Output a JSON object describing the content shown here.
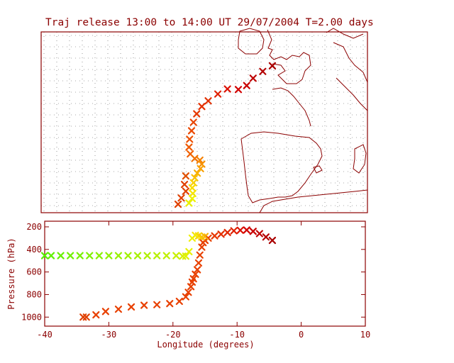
{
  "title": "Traj release 13:00 to 14:00 UT 29/07/2004    T=2.00 days",
  "colors": {
    "axis": "#8b0000",
    "coast": "#8b0000",
    "grid": "#555555",
    "background": "#ffffff"
  },
  "chart_data": [
    {
      "type": "scatter",
      "panel": "map",
      "title": "Traj release 13:00 to 14:00 UT 29/07/2004    T=2.00 days",
      "xlabel": "",
      "ylabel": "",
      "xlim": [
        -40,
        10
      ],
      "grid": true,
      "marker": "x",
      "series": [
        {
          "color_scale": "pressure (yellow = high altitude, dark red = low)",
          "points": [
            {
              "x": -4.5,
              "y": 56.0,
              "c": "#aa0000"
            },
            {
              "x": -6.0,
              "y": 55.0,
              "c": "#b40000"
            },
            {
              "x": -7.5,
              "y": 53.8,
              "c": "#be0000"
            },
            {
              "x": -8.5,
              "y": 52.5,
              "c": "#c80000"
            },
            {
              "x": -9.8,
              "y": 51.8,
              "c": "#d20000"
            },
            {
              "x": -11.5,
              "y": 51.9,
              "c": "#dc1000"
            },
            {
              "x": -13.0,
              "y": 51.0,
              "c": "#e02000"
            },
            {
              "x": -14.5,
              "y": 49.8,
              "c": "#e23000"
            },
            {
              "x": -15.5,
              "y": 48.8,
              "c": "#e43000"
            },
            {
              "x": -16.3,
              "y": 47.5,
              "c": "#e63a00"
            },
            {
              "x": -16.8,
              "y": 46.0,
              "c": "#e84400"
            },
            {
              "x": -17.1,
              "y": 44.5,
              "c": "#ea4800"
            },
            {
              "x": -17.4,
              "y": 43.0,
              "c": "#ec5000"
            },
            {
              "x": -17.5,
              "y": 41.6,
              "c": "#ee5a00"
            },
            {
              "x": -17.3,
              "y": 40.4,
              "c": "#f06000"
            },
            {
              "x": -16.6,
              "y": 39.6,
              "c": "#f27000"
            },
            {
              "x": -15.8,
              "y": 39.3,
              "c": "#f48000"
            },
            {
              "x": -15.5,
              "y": 38.6,
              "c": "#f69000"
            },
            {
              "x": -15.7,
              "y": 37.8,
              "c": "#f8a000"
            },
            {
              "x": -16.2,
              "y": 37.0,
              "c": "#f8b000"
            },
            {
              "x": -16.6,
              "y": 36.2,
              "c": "#f8c000"
            },
            {
              "x": -16.8,
              "y": 35.3,
              "c": "#f8d000"
            },
            {
              "x": -17.0,
              "y": 34.4,
              "c": "#f8dc00"
            },
            {
              "x": -16.9,
              "y": 33.4,
              "c": "#f4e400"
            },
            {
              "x": -17.0,
              "y": 32.5,
              "c": "#eef000"
            },
            {
              "x": -17.5,
              "y": 31.7,
              "c": "#e8f000"
            },
            {
              "x": -18.0,
              "y": 36.5,
              "c": "#e05000"
            },
            {
              "x": -18.2,
              "y": 35.0,
              "c": "#e04000"
            },
            {
              "x": -18.0,
              "y": 33.8,
              "c": "#e04000"
            },
            {
              "x": -18.7,
              "y": 32.6,
              "c": "#e04000"
            },
            {
              "x": -19.2,
              "y": 31.5,
              "c": "#e04000"
            }
          ]
        }
      ]
    },
    {
      "type": "scatter",
      "panel": "profile",
      "xlabel": "Longitude  (degrees)",
      "ylabel": "Pressure  (hPa)",
      "xlim": [
        -40,
        10
      ],
      "ylim": [
        1080,
        150
      ],
      "xticks": [
        "-40",
        "-30",
        "-20",
        "-10",
        "0",
        "10"
      ],
      "yticks": [
        "200",
        "400",
        "600",
        "800",
        "1000"
      ],
      "grid": false,
      "marker": "x",
      "series": [
        {
          "x": [
            -4.5,
            -5.5,
            -6.5,
            -7.5,
            -8.5,
            -9.5,
            -10.5,
            -11.5,
            -12.5,
            -13.5,
            -14.5,
            -15.0,
            -15.3,
            -15.5,
            -15.8,
            -16.0,
            -16.2,
            -16.5,
            -16.8,
            -17.0,
            -17.2,
            -17.6,
            -18.0,
            -19.0,
            -20.5,
            -22.5,
            -24.5,
            -26.5,
            -28.5,
            -30.5,
            -32.0,
            -33.5,
            -34.0
          ],
          "y": [
            320,
            290,
            260,
            240,
            228,
            230,
            235,
            250,
            265,
            280,
            300,
            320,
            340,
            380,
            450,
            520,
            580,
            620,
            660,
            690,
            730,
            780,
            820,
            860,
            880,
            890,
            895,
            910,
            930,
            950,
            980,
            1000,
            1000
          ],
          "colors": [
            "#aa0000",
            "#b40000",
            "#be0000",
            "#c80000",
            "#d20000",
            "#dc1000",
            "#e02000",
            "#e22800",
            "#e43000",
            "#e63800",
            "#e84000",
            "#e84000",
            "#e84000",
            "#e84000",
            "#e84000",
            "#e84000",
            "#e84000",
            "#e84000",
            "#e84000",
            "#e84000",
            "#e84000",
            "#e84000",
            "#e84000",
            "#e84000",
            "#e84000",
            "#e84000",
            "#e84000",
            "#e84000",
            "#e84000",
            "#e84000",
            "#e84000",
            "#e04000",
            "#e04000"
          ]
        },
        {
          "x": [
            -15.0,
            -15.5,
            -16.0,
            -16.5,
            -17.0,
            -17.5,
            -18.0,
            -18.5,
            -19.5,
            -21.0,
            -22.5,
            -24.0,
            -25.5,
            -27.0,
            -28.5,
            -30.0,
            -31.5,
            -33.0,
            -34.5,
            -36.0,
            -37.5,
            -39.0,
            -40.0
          ],
          "y": [
            285,
            290,
            280,
            275,
            300,
            420,
            460,
            460,
            455,
            455,
            455,
            455,
            455,
            455,
            455,
            455,
            455,
            455,
            455,
            455,
            455,
            455,
            455
          ],
          "colors": [
            "#f8b000",
            "#f8c000",
            "#f8d000",
            "#f4e400",
            "#eef000",
            "#e8f000",
            "#e0f000",
            "#d8f000",
            "#c8f000",
            "#c0f000",
            "#b8f000",
            "#b0f000",
            "#a8f000",
            "#a0f000",
            "#98f000",
            "#90f000",
            "#88f000",
            "#80f000",
            "#78f000",
            "#70f000",
            "#68f000",
            "#60f000",
            "#58f000"
          ]
        }
      ]
    }
  ]
}
